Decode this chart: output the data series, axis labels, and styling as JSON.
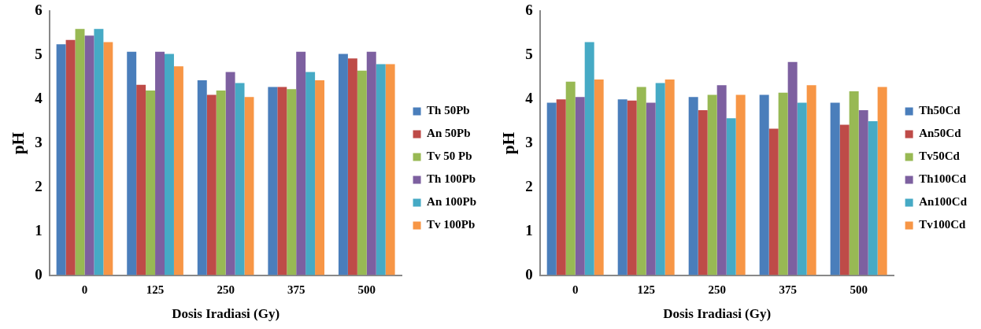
{
  "chart_data": [
    {
      "type": "bar",
      "xlabel": "Dosis Iradiasi (Gy)",
      "ylabel": "pH",
      "categories": [
        "0",
        "125",
        "250",
        "375",
        "500"
      ],
      "ylim": [
        0,
        6
      ],
      "yticks": [
        0,
        1,
        2,
        3,
        4,
        5,
        6
      ],
      "grid": false,
      "legend": "right",
      "series": [
        {
          "name": "Th 50Pb",
          "color": "#4a7ebb",
          "values": [
            5.25,
            5.08,
            4.43,
            4.28,
            5.03
          ]
        },
        {
          "name": "An 50Pb",
          "color": "#be4b48",
          "values": [
            5.35,
            4.33,
            4.1,
            4.28,
            4.93
          ]
        },
        {
          "name": "Tv 50 Pb",
          "color": "#98b954",
          "values": [
            5.6,
            4.2,
            4.2,
            4.23,
            4.65
          ]
        },
        {
          "name": "Th 100Pb",
          "color": "#7d60a0",
          "values": [
            5.45,
            5.08,
            4.62,
            5.08,
            5.08
          ]
        },
        {
          "name": "An 100Pb",
          "color": "#46aac5",
          "values": [
            5.6,
            5.03,
            4.37,
            4.62,
            4.8
          ]
        },
        {
          "name": "Tv 100Pb",
          "color": "#f79646",
          "values": [
            5.3,
            4.75,
            4.05,
            4.43,
            4.8
          ]
        }
      ]
    },
    {
      "type": "bar",
      "xlabel": "Dosis Iradiasi (Gy)",
      "ylabel": "pH",
      "categories": [
        "0",
        "125",
        "250",
        "375",
        "500"
      ],
      "ylim": [
        0,
        6
      ],
      "yticks": [
        0,
        1,
        2,
        3,
        4,
        5,
        6
      ],
      "grid": false,
      "legend": "right",
      "series": [
        {
          "name": "Th50Cd",
          "color": "#4a7ebb",
          "values": [
            3.92,
            4.0,
            4.05,
            4.1,
            3.92
          ]
        },
        {
          "name": "An50Cd",
          "color": "#be4b48",
          "values": [
            4.0,
            3.97,
            3.75,
            3.33,
            3.42
          ]
        },
        {
          "name": "Tv50Cd",
          "color": "#98b954",
          "values": [
            4.4,
            4.28,
            4.1,
            4.15,
            4.18
          ]
        },
        {
          "name": "Th100Cd",
          "color": "#7d60a0",
          "values": [
            4.05,
            3.92,
            4.32,
            4.85,
            3.75
          ]
        },
        {
          "name": "An100Cd",
          "color": "#46aac5",
          "values": [
            5.3,
            4.37,
            3.57,
            3.92,
            3.5
          ]
        },
        {
          "name": "Tv100Cd",
          "color": "#f79646",
          "values": [
            4.45,
            4.45,
            4.1,
            4.32,
            4.28
          ]
        }
      ]
    }
  ]
}
